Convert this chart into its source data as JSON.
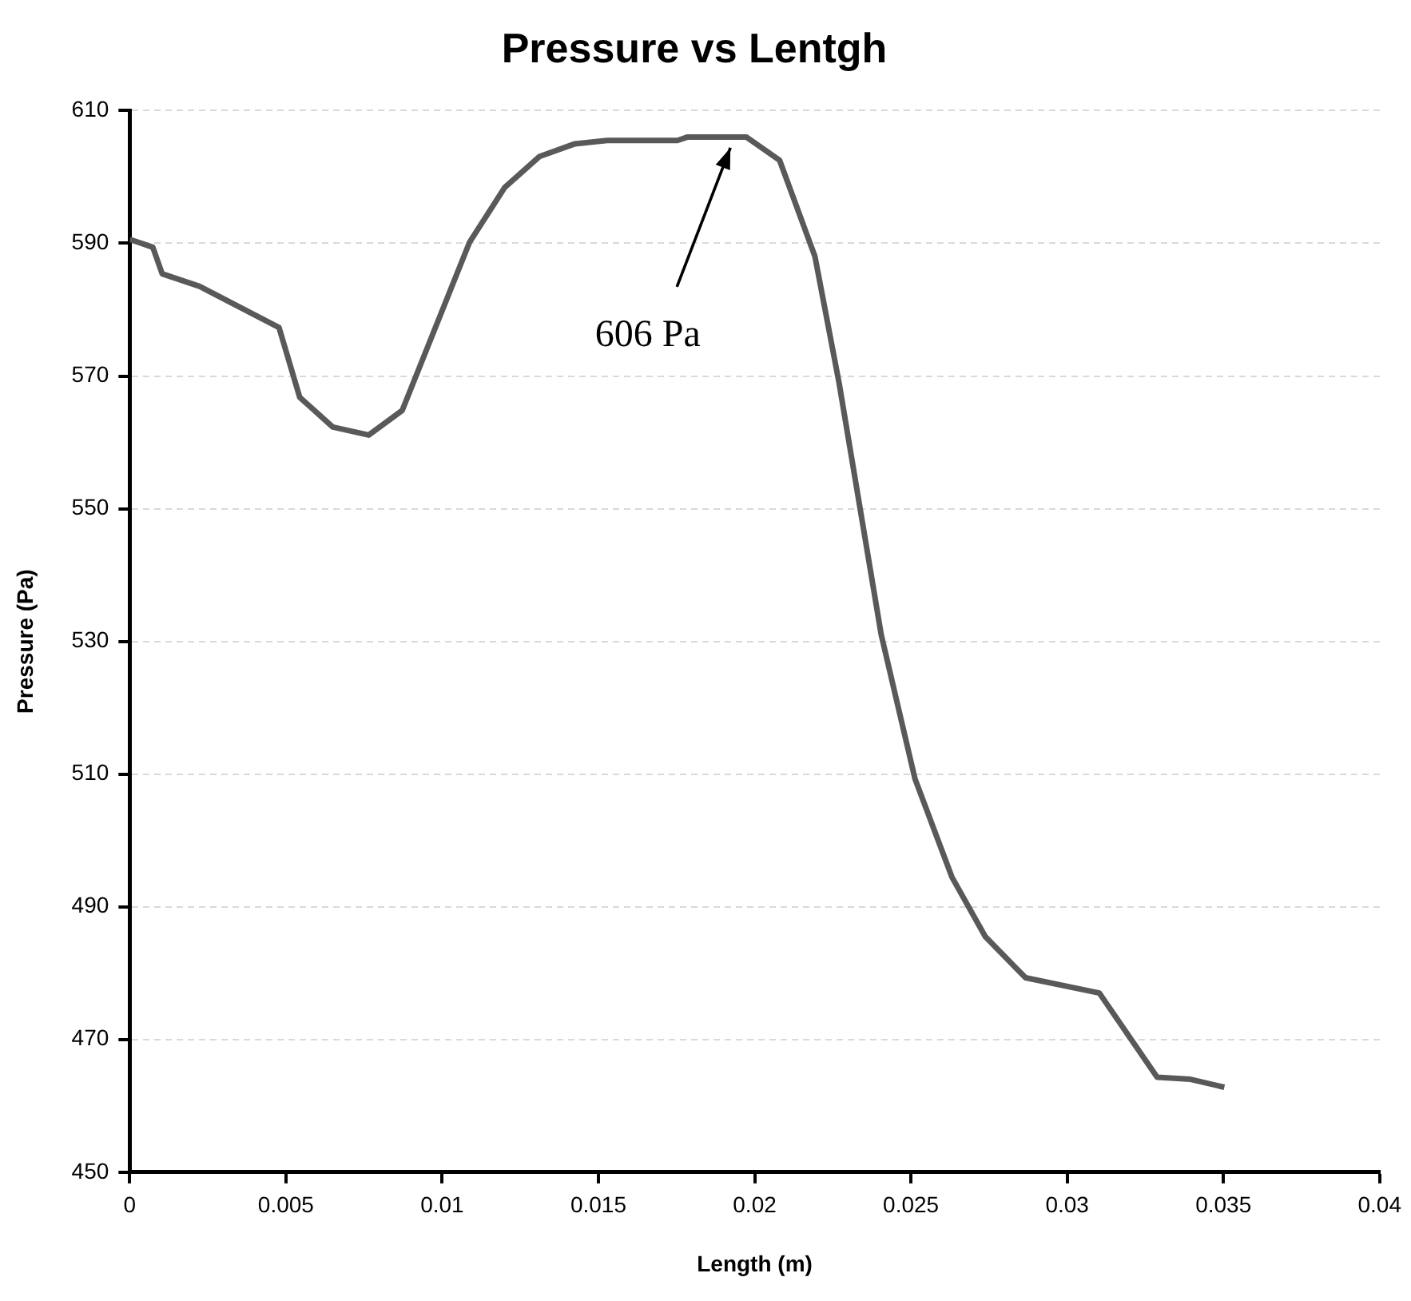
{
  "chart_data": {
    "type": "line",
    "title": "Pressure vs Lentgh",
    "xlabel": "Length (m)",
    "ylabel": "Pressure (Pa)",
    "x": [
      0,
      0.00074,
      0.00104,
      0.00224,
      0.00478,
      0.00544,
      0.0065,
      0.00765,
      0.00872,
      0.01088,
      0.012,
      0.01312,
      0.01425,
      0.01528,
      0.01753,
      0.01784,
      0.01974,
      0.0208,
      0.02193,
      0.0227,
      0.02405,
      0.02513,
      0.02631,
      0.02738,
      0.02867,
      0.03103,
      0.03288,
      0.03395,
      0.03503
    ],
    "series": [
      {
        "color": "#595959",
        "values": [
          590.6,
          589.4,
          585.4,
          583.5,
          577.3,
          566.8,
          562.3,
          561.1,
          564.8,
          590.2,
          598.4,
          603.1,
          605,
          605.5,
          605.5,
          606,
          606,
          602.5,
          588,
          569,
          531,
          509.3,
          494.5,
          485.5,
          479.3,
          477,
          464.3,
          464,
          462.8
        ]
      }
    ],
    "xlim": [
      0,
      0.04
    ],
    "xticks": [
      0,
      0.005,
      0.01,
      0.015,
      0.02,
      0.025,
      0.03,
      0.035,
      0.04
    ],
    "ylim": [
      450,
      610
    ],
    "yticks": [
      450,
      470,
      490,
      510,
      530,
      550,
      570,
      590,
      610
    ],
    "grid": "y",
    "legend": false,
    "marker": "none",
    "line_style": "solid",
    "annotations": [
      "606 Pa"
    ]
  }
}
